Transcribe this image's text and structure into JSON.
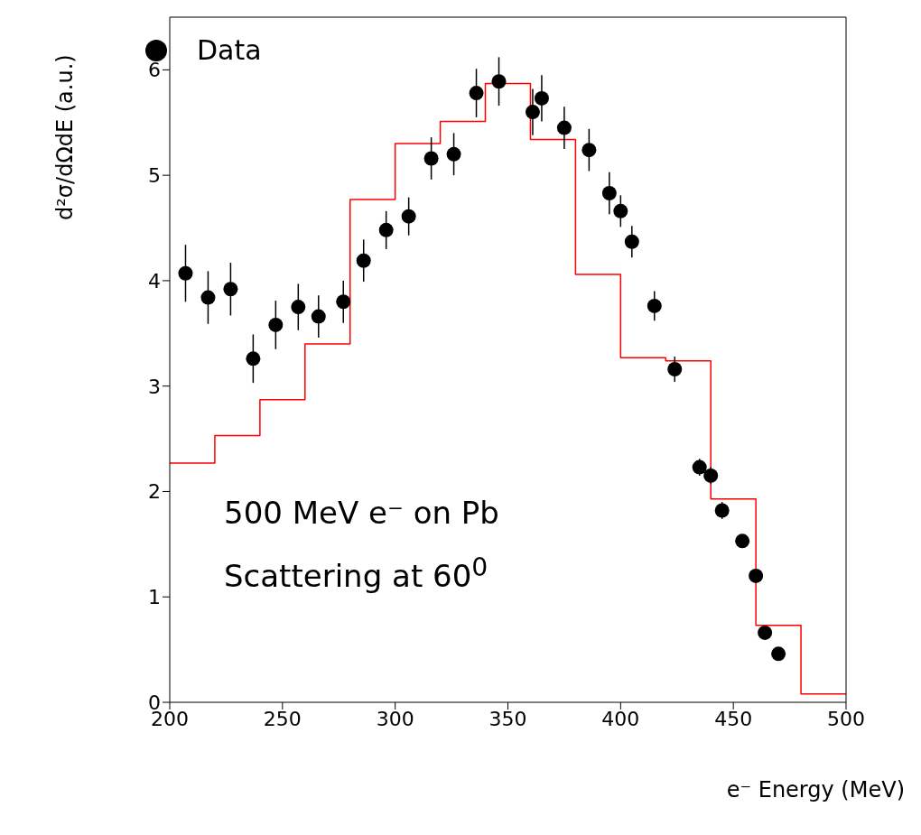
{
  "chart_data": {
    "type": "scatter",
    "xlabel": "e⁻ Energy (MeV)",
    "ylabel": "d²σ/dΩdE (a.u.)",
    "annotations": [
      "500 MeV e⁻ on Pb",
      "Scattering at 60$^{0}$"
    ],
    "xlim": [
      200,
      500
    ],
    "xticks": [
      200,
      250,
      300,
      350,
      400,
      450,
      500
    ],
    "ylim": [
      0,
      6.5
    ],
    "yticks": [
      0,
      1,
      2,
      3,
      4,
      5,
      6
    ],
    "grid": false,
    "legend": "top left",
    "marker": "circle",
    "series": [
      {
        "name": "Data",
        "color": "#000000",
        "x": [
          207,
          217,
          227,
          237,
          247,
          257,
          266,
          277,
          286,
          296,
          306,
          316,
          326,
          336,
          346,
          361,
          365,
          375,
          386,
          395,
          400,
          405,
          415,
          424,
          435,
          440,
          445,
          454,
          460,
          464,
          470
        ],
        "values": [
          4.07,
          3.84,
          3.92,
          3.26,
          3.58,
          3.75,
          3.66,
          3.8,
          4.19,
          4.48,
          4.61,
          5.16,
          5.2,
          5.78,
          5.89,
          5.6,
          5.73,
          5.45,
          5.24,
          4.83,
          4.66,
          4.37,
          3.76,
          3.16,
          2.23,
          2.15,
          1.82,
          1.53,
          1.2,
          0.66,
          0.46
        ],
        "errors": [
          0.27,
          0.25,
          0.25,
          0.23,
          0.23,
          0.22,
          0.2,
          0.2,
          0.2,
          0.18,
          0.18,
          0.2,
          0.2,
          0.23,
          0.23,
          0.22,
          0.22,
          0.2,
          0.2,
          0.2,
          0.15,
          0.15,
          0.14,
          0.12,
          0.08,
          0.08,
          0.08,
          0.06,
          0.06,
          0.05,
          0.04
        ]
      },
      {
        "type": "histogram",
        "color": "#ff0000",
        "bins": [
          200,
          220,
          240,
          260,
          280,
          300,
          320,
          340,
          360,
          380,
          400,
          420,
          440,
          460,
          480,
          500
        ],
        "values": [
          2.27,
          2.53,
          2.87,
          3.4,
          4.77,
          5.3,
          5.51,
          5.87,
          5.34,
          4.06,
          3.27,
          3.24,
          1.93,
          0.73,
          0.08
        ]
      }
    ]
  }
}
